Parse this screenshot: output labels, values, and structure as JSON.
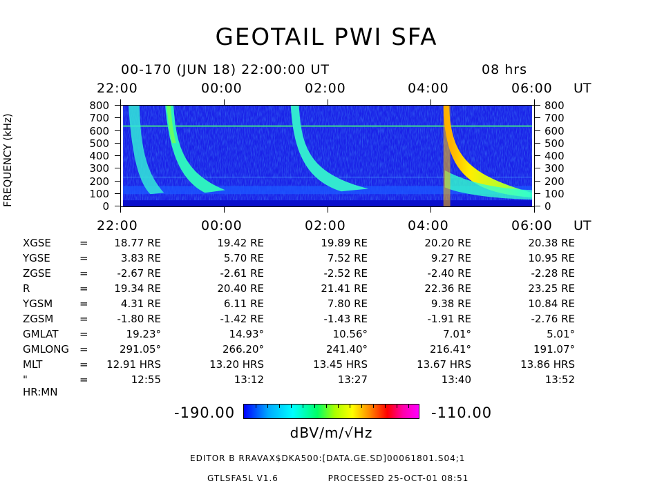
{
  "header": {
    "title": "GEOTAIL PWI SFA",
    "subtitle": "00-170 (JUN 18) 22:00:00 UT",
    "duration": "08 hrs"
  },
  "chart_data": {
    "type": "heatmap",
    "title": "GEOTAIL PWI SFA",
    "xlabel": "UT",
    "ylabel": "FREQUENCY (kHz)",
    "x_ticks": [
      "22:00",
      "00:00",
      "02:00",
      "04:00",
      "06:00"
    ],
    "x_unit": "UT",
    "y_ticks": [
      800,
      700,
      600,
      500,
      400,
      300,
      200,
      100,
      0
    ],
    "ylim": [
      0,
      800
    ],
    "x_range_hours": [
      0,
      8
    ],
    "colorbar": {
      "min": "-190.00",
      "max": "-110.00",
      "units": "dBV/m/√Hz"
    },
    "colors": [
      "#0000ff",
      "#00aaff",
      "#00ffff",
      "#00ff66",
      "#aaff00",
      "#ffff00",
      "#ff8800",
      "#ff0000",
      "#ff00aa",
      "#ff00ff"
    ]
  },
  "orbit": {
    "rows": [
      {
        "name": "XGSE",
        "eq": "=",
        "values": [
          "18.77 RE",
          "19.42 RE",
          "19.89 RE",
          "20.20 RE",
          "20.38 RE"
        ]
      },
      {
        "name": "YGSE",
        "eq": "=",
        "values": [
          "3.83 RE",
          "5.70 RE",
          "7.52 RE",
          "9.27 RE",
          "10.95 RE"
        ]
      },
      {
        "name": "ZGSE",
        "eq": "=",
        "values": [
          "-2.67 RE",
          "-2.61 RE",
          "-2.52 RE",
          "-2.40 RE",
          "-2.28 RE"
        ]
      },
      {
        "name": "R",
        "eq": "=",
        "values": [
          "19.34 RE",
          "20.40 RE",
          "21.41 RE",
          "22.36 RE",
          "23.25 RE"
        ]
      },
      {
        "name": "YGSM",
        "eq": "=",
        "values": [
          "4.31 RE",
          "6.11 RE",
          "7.80 RE",
          "9.38 RE",
          "10.84 RE"
        ]
      },
      {
        "name": "ZGSM",
        "eq": "=",
        "values": [
          "-1.80 RE",
          "-1.42 RE",
          "-1.43 RE",
          "-1.91 RE",
          "-2.76 RE"
        ]
      },
      {
        "name": "GMLAT",
        "eq": "=",
        "values": [
          "19.23°",
          "14.93°",
          "10.56°",
          "7.01°",
          "5.01°"
        ]
      },
      {
        "name": "GMLONG",
        "eq": "=",
        "values": [
          "291.05°",
          "266.20°",
          "241.40°",
          "216.41°",
          "191.07°"
        ]
      },
      {
        "name": "MLT",
        "eq": "=",
        "values": [
          "12.91 HRS",
          "13.20 HRS",
          "13.45 HRS",
          "13.67 HRS",
          "13.86 HRS"
        ]
      },
      {
        "name": "\" HR:MN",
        "eq": "=",
        "values": [
          "12:55",
          "13:12",
          "13:27",
          "13:40",
          "13:52"
        ]
      }
    ]
  },
  "footer": {
    "editor": "EDITOR B    RRAVAX$DKA500:[DATA.GE.SD]00061801.S04;1",
    "version": "GTLSFA5L V1.6",
    "processed": "PROCESSED 25-OCT-01  08:51"
  }
}
